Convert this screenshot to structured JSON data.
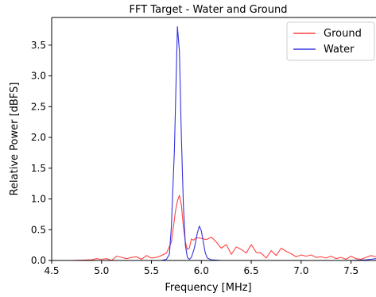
{
  "chart_data": {
    "type": "line",
    "title": "FFT Target - Water and Ground",
    "xlabel": "Frequency [MHz]",
    "ylabel": "Relative Power [dBFS]",
    "xlim": [
      4.5,
      7.75
    ],
    "ylim": [
      0.0,
      3.95
    ],
    "xticks": [
      4.5,
      5.0,
      5.5,
      6.0,
      6.5,
      7.0,
      7.5
    ],
    "xtick_labels": [
      "4.5",
      "5.0",
      "5.5",
      "6.0",
      "6.5",
      "7.0",
      "7.5"
    ],
    "yticks": [
      0.0,
      0.5,
      1.0,
      1.5,
      2.0,
      2.5,
      3.0,
      3.5
    ],
    "ytick_labels": [
      "0.0",
      "0.5",
      "1.0",
      "1.5",
      "2.0",
      "2.5",
      "3.0",
      "3.5"
    ],
    "grid": false,
    "legend_position": "top-right",
    "series": [
      {
        "name": "Ground",
        "color": "#ff4444",
        "x": [
          4.5,
          4.7,
          4.9,
          4.95,
          5.0,
          5.05,
          5.1,
          5.15,
          5.2,
          5.25,
          5.3,
          5.35,
          5.4,
          5.45,
          5.5,
          5.55,
          5.6,
          5.65,
          5.7,
          5.72,
          5.74,
          5.76,
          5.78,
          5.8,
          5.82,
          5.84,
          5.86,
          5.88,
          5.9,
          5.92,
          5.95,
          6.0,
          6.05,
          6.1,
          6.15,
          6.2,
          6.25,
          6.3,
          6.35,
          6.4,
          6.45,
          6.5,
          6.55,
          6.6,
          6.65,
          6.7,
          6.75,
          6.8,
          6.85,
          6.9,
          6.95,
          7.0,
          7.05,
          7.1,
          7.15,
          7.2,
          7.25,
          7.3,
          7.35,
          7.4,
          7.45,
          7.5,
          7.55,
          7.6,
          7.65,
          7.7,
          7.75
        ],
        "values": [
          0.0,
          0.0,
          0.01,
          0.03,
          0.02,
          0.03,
          0.0,
          0.07,
          0.05,
          0.03,
          0.05,
          0.06,
          0.02,
          0.08,
          0.04,
          0.05,
          0.08,
          0.12,
          0.3,
          0.55,
          0.8,
          0.97,
          1.06,
          0.9,
          0.55,
          0.3,
          0.18,
          0.2,
          0.35,
          0.33,
          0.37,
          0.36,
          0.34,
          0.38,
          0.3,
          0.2,
          0.26,
          0.1,
          0.22,
          0.18,
          0.12,
          0.26,
          0.13,
          0.12,
          0.04,
          0.16,
          0.08,
          0.2,
          0.15,
          0.11,
          0.06,
          0.09,
          0.07,
          0.09,
          0.05,
          0.06,
          0.04,
          0.07,
          0.03,
          0.05,
          0.02,
          0.07,
          0.03,
          0.02,
          0.05,
          0.08,
          0.06
        ]
      },
      {
        "name": "Water",
        "color": "#3333dd",
        "x": [
          4.5,
          5.0,
          5.5,
          5.6,
          5.65,
          5.68,
          5.7,
          5.73,
          5.76,
          5.78,
          5.8,
          5.82,
          5.84,
          5.86,
          5.88,
          5.9,
          5.93,
          5.96,
          5.98,
          6.0,
          6.02,
          6.04,
          6.06,
          6.1,
          6.2,
          6.5,
          7.0,
          7.5,
          7.65,
          7.7,
          7.75
        ],
        "values": [
          0.0,
          0.0,
          0.0,
          0.0,
          0.02,
          0.1,
          0.55,
          1.8,
          3.8,
          3.4,
          2.0,
          0.9,
          0.25,
          0.05,
          0.02,
          0.05,
          0.2,
          0.45,
          0.56,
          0.48,
          0.3,
          0.12,
          0.04,
          0.01,
          0.0,
          0.0,
          0.0,
          0.0,
          0.01,
          0.02,
          0.03
        ]
      }
    ]
  }
}
